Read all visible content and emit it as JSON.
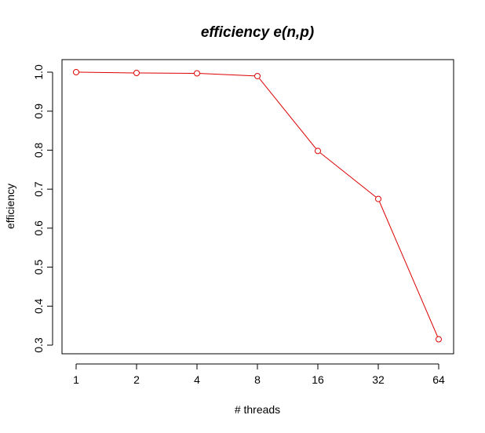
{
  "chart_data": {
    "type": "line",
    "title": "efficiency e(n,p)",
    "xlabel": "# threads",
    "ylabel": "efficiency",
    "categories": [
      "1",
      "2",
      "4",
      "8",
      "16",
      "32",
      "64"
    ],
    "series": [
      {
        "values": [
          1.0,
          0.998,
          0.997,
          0.99,
          0.798,
          0.675,
          0.315
        ]
      }
    ],
    "ylim": [
      0.3,
      1.0
    ],
    "yticks": [
      "0.3",
      "0.4",
      "0.5",
      "0.6",
      "0.7",
      "0.8",
      "0.9",
      "1.0"
    ],
    "grid": false,
    "line_color": "#dd0000",
    "marker": "open-circle"
  }
}
